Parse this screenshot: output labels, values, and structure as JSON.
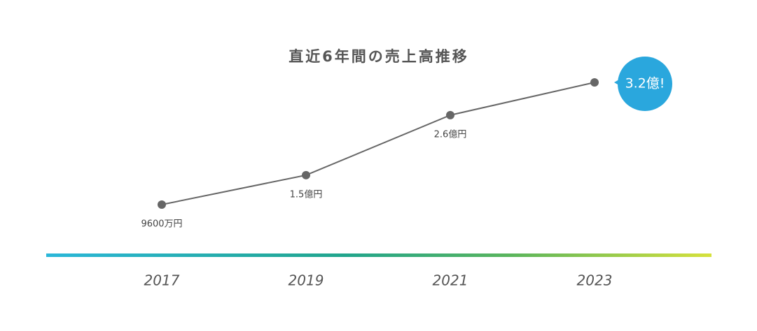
{
  "chart_data": {
    "type": "line",
    "title": "直近6年間の売上高推移",
    "categories": [
      "2017",
      "2019",
      "2021",
      "2023"
    ],
    "values": [
      0.96,
      1.5,
      2.6,
      3.2
    ],
    "value_labels": [
      "9600万円",
      "1.5億円",
      "2.6億円",
      "3.2億!"
    ],
    "color": "#666666"
  }
}
